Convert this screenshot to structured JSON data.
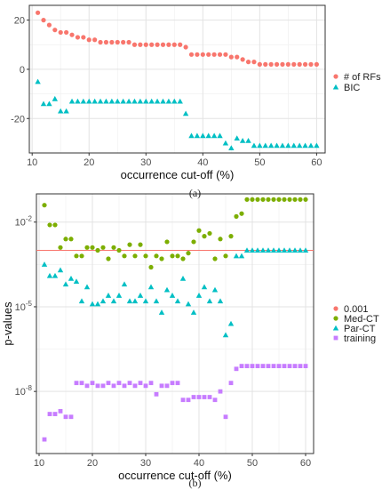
{
  "captions": [
    "(a)",
    "(b)"
  ],
  "chart_data": [
    {
      "type": "scatter",
      "xlabel": "occurrence cut-off (%)",
      "ylabel": "",
      "xlim": [
        9.5,
        61.5
      ],
      "ylim": [
        -34,
        26
      ],
      "xticks": [
        10,
        20,
        30,
        40,
        50,
        60
      ],
      "xtick_labels": [
        "10",
        "20",
        "30",
        "40",
        "50",
        "60"
      ],
      "yticks": [
        -20,
        0,
        20
      ],
      "ytick_labels": [
        "-20",
        "0",
        "20"
      ],
      "grid": true,
      "legend_position": "right",
      "series": [
        {
          "name": "# of RFs",
          "color": "#F8766D",
          "marker": "circle",
          "x": [
            11,
            12,
            13,
            14,
            15,
            16,
            17,
            18,
            19,
            20,
            21,
            22,
            23,
            24,
            25,
            26,
            27,
            28,
            29,
            30,
            31,
            32,
            33,
            34,
            35,
            36,
            37,
            38,
            39,
            40,
            41,
            42,
            43,
            44,
            45,
            46,
            47,
            48,
            49,
            50,
            51,
            52,
            53,
            54,
            55,
            56,
            57,
            58,
            59,
            60
          ],
          "y": [
            23,
            20,
            18,
            16,
            15,
            15,
            14,
            13,
            13,
            12,
            12,
            11,
            11,
            11,
            11,
            11,
            11,
            10,
            10,
            10,
            10,
            10,
            10,
            10,
            10,
            10,
            9,
            6,
            6,
            6,
            6,
            6,
            6,
            6,
            5,
            5,
            4,
            3,
            3,
            2,
            2,
            2,
            2,
            2,
            2,
            2,
            2,
            2,
            2,
            2
          ]
        },
        {
          "name": "BIC",
          "color": "#00BFC4",
          "marker": "triangle",
          "x": [
            11,
            12,
            13,
            14,
            15,
            16,
            17,
            18,
            19,
            20,
            21,
            22,
            23,
            24,
            25,
            26,
            27,
            28,
            29,
            30,
            31,
            32,
            33,
            34,
            35,
            36,
            37,
            38,
            39,
            40,
            41,
            42,
            43,
            44,
            45,
            46,
            47,
            48,
            49,
            50,
            51,
            52,
            53,
            54,
            55,
            56,
            57,
            58,
            59,
            60
          ],
          "y": [
            -5,
            -14,
            -14,
            -12,
            -17,
            -17,
            -13,
            -13,
            -13,
            -13,
            -13,
            -13,
            -13,
            -13,
            -13,
            -13,
            -13,
            -13,
            -13,
            -13,
            -13,
            -13,
            -13,
            -13,
            -13,
            -13,
            -18,
            -27,
            -27,
            -27,
            -27,
            -27,
            -27,
            -30,
            -32,
            -28,
            -29,
            -29,
            -31,
            -31,
            -31,
            -31,
            -31,
            -31,
            -31,
            -31,
            -31,
            -31,
            -31,
            -31
          ]
        }
      ]
    },
    {
      "type": "scatter",
      "xlabel": "occurrence cut-off (%)",
      "ylabel": "p-values",
      "yscale": "log",
      "xlim": [
        9.5,
        61.5
      ],
      "ylim": [
        -10.2,
        -1.0
      ],
      "xticks": [
        10,
        20,
        30,
        40,
        50,
        60
      ],
      "xtick_labels": [
        "10",
        "20",
        "30",
        "40",
        "50",
        "60"
      ],
      "yticks": [
        -8,
        -5,
        -2
      ],
      "ytick_labels": [
        "10^-8",
        "10^-5",
        "10^-2"
      ],
      "grid": true,
      "legend_position": "right",
      "series": [
        {
          "name": "0.001",
          "color": "#F8766D",
          "marker": "circle",
          "hline": -3.0
        },
        {
          "name": "Med-CT",
          "color": "#7CAE00",
          "marker": "circle",
          "x": [
            11,
            12,
            13,
            14,
            15,
            16,
            17,
            18,
            19,
            20,
            21,
            22,
            23,
            24,
            25,
            26,
            27,
            28,
            29,
            30,
            31,
            32,
            33,
            34,
            35,
            36,
            37,
            38,
            39,
            40,
            41,
            42,
            43,
            44,
            45,
            46,
            47,
            48,
            49,
            50,
            51,
            52,
            53,
            54,
            55,
            56,
            57,
            58,
            59,
            60
          ],
          "y": [
            -1.4,
            -2.1,
            -2.1,
            -2.9,
            -2.6,
            -2.6,
            -3.2,
            -3.2,
            -2.9,
            -2.9,
            -3.0,
            -2.9,
            -3.3,
            -2.9,
            -3.0,
            -3.2,
            -2.8,
            -3.2,
            -2.8,
            -3.2,
            -3.6,
            -3.2,
            -3.3,
            -2.7,
            -3.2,
            -3.2,
            -3.3,
            -3.1,
            -2.7,
            -2.3,
            -2.5,
            -2.4,
            -3.3,
            -2.6,
            -3.2,
            -2.5,
            -1.8,
            -1.7,
            -1.2,
            -1.2,
            -1.2,
            -1.2,
            -1.2,
            -1.2,
            -1.2,
            -1.2,
            -1.2,
            -1.2,
            -1.2,
            -1.2
          ]
        },
        {
          "name": "Par-CT",
          "color": "#00BFC4",
          "marker": "triangle",
          "x": [
            11,
            12,
            13,
            14,
            15,
            16,
            17,
            18,
            19,
            20,
            21,
            22,
            23,
            24,
            25,
            26,
            27,
            28,
            29,
            30,
            31,
            32,
            33,
            34,
            35,
            36,
            37,
            38,
            39,
            40,
            41,
            42,
            43,
            44,
            45,
            46,
            47,
            48,
            49,
            50,
            51,
            52,
            53,
            54,
            55,
            56,
            57,
            58,
            59,
            60
          ],
          "y": [
            -3.5,
            -3.9,
            -3.9,
            -3.7,
            -4.2,
            -4.0,
            -4.1,
            -4.8,
            -4.3,
            -4.9,
            -4.9,
            -4.8,
            -4.6,
            -4.8,
            -4.6,
            -4.2,
            -4.8,
            -4.8,
            -4.6,
            -4.8,
            -4.3,
            -4.8,
            -5.2,
            -4.4,
            -4.6,
            -4.8,
            -4.0,
            -4.9,
            -5.2,
            -4.6,
            -4.3,
            -4.8,
            -4.4,
            -4.8,
            -6.0,
            -5.6,
            -3.2,
            -3.2,
            -3.0,
            -3.0,
            -3.0,
            -3.0,
            -3.0,
            -3.0,
            -3.0,
            -3.0,
            -3.0,
            -3.0,
            -3.0,
            -3.0
          ]
        },
        {
          "name": "training",
          "color": "#C77CFF",
          "marker": "square",
          "x": [
            11,
            12,
            13,
            14,
            15,
            16,
            17,
            18,
            19,
            20,
            21,
            22,
            23,
            24,
            25,
            26,
            27,
            28,
            29,
            30,
            31,
            32,
            33,
            34,
            35,
            36,
            37,
            38,
            39,
            40,
            41,
            42,
            43,
            44,
            45,
            46,
            47,
            48,
            49,
            50,
            51,
            52,
            53,
            54,
            55,
            56,
            57,
            58,
            59,
            60
          ],
          "y": [
            -9.7,
            -8.8,
            -8.8,
            -8.7,
            -8.9,
            -8.9,
            -7.7,
            -7.7,
            -7.8,
            -7.7,
            -7.8,
            -7.8,
            -7.7,
            -7.8,
            -7.7,
            -7.8,
            -7.7,
            -7.8,
            -7.7,
            -7.8,
            -7.7,
            -8.1,
            -7.8,
            -7.8,
            -7.7,
            -7.7,
            -8.3,
            -8.3,
            -8.2,
            -8.2,
            -8.2,
            -8.2,
            -8.3,
            -8.0,
            -8.9,
            -7.7,
            -7.2,
            -7.1,
            -7.1,
            -7.1,
            -7.1,
            -7.1,
            -7.1,
            -7.1,
            -7.1,
            -7.1,
            -7.1,
            -7.1,
            -7.1,
            -7.1
          ]
        }
      ]
    }
  ]
}
